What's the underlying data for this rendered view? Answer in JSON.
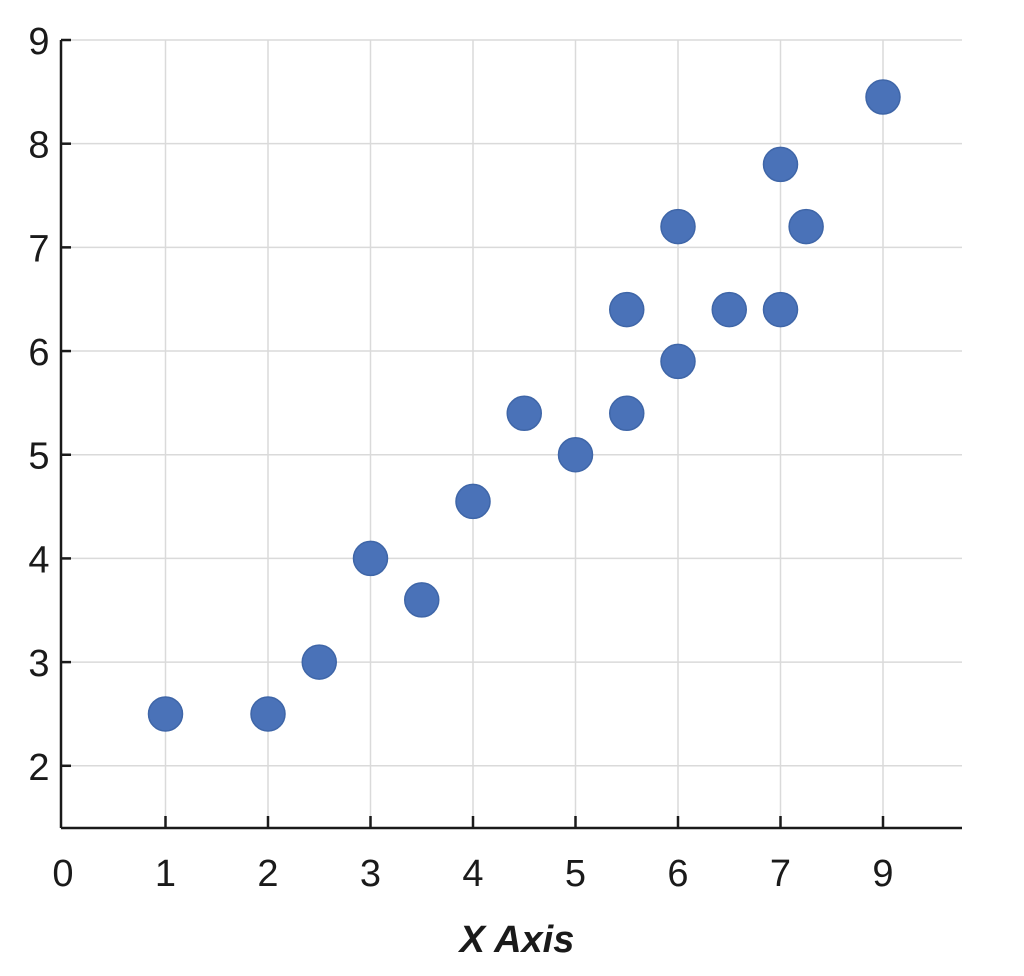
{
  "chart_data": {
    "type": "scatter",
    "title": "",
    "xlabel": "X Axis",
    "ylabel": "",
    "grid": true,
    "legend": "none",
    "x_tick_labels": [
      "0",
      "1",
      "2",
      "3",
      "4",
      "5",
      "6",
      "7",
      "9"
    ],
    "y_tick_labels": [
      "2",
      "3",
      "4",
      "5",
      "6",
      "7",
      "8",
      "9"
    ],
    "ylim": [
      1.4,
      9
    ],
    "point_color": "#4a72b8",
    "points": [
      {
        "x": 1,
        "y": 2.5
      },
      {
        "x": 2,
        "y": 2.5
      },
      {
        "x": 2.5,
        "y": 3.0
      },
      {
        "x": 3,
        "y": 4.0
      },
      {
        "x": 3.5,
        "y": 3.6
      },
      {
        "x": 4,
        "y": 4.55
      },
      {
        "x": 4.5,
        "y": 5.4
      },
      {
        "x": 5,
        "y": 5.0
      },
      {
        "x": 5.5,
        "y": 5.4
      },
      {
        "x": 5.5,
        "y": 6.4
      },
      {
        "x": 6,
        "y": 5.9
      },
      {
        "x": 6,
        "y": 7.2
      },
      {
        "x": 6.5,
        "y": 6.4
      },
      {
        "x": 7,
        "y": 6.4
      },
      {
        "x": 7,
        "y": 7.8
      },
      {
        "x": 7.5,
        "y": 7.2
      },
      {
        "x": 9,
        "y": 8.45
      }
    ]
  }
}
